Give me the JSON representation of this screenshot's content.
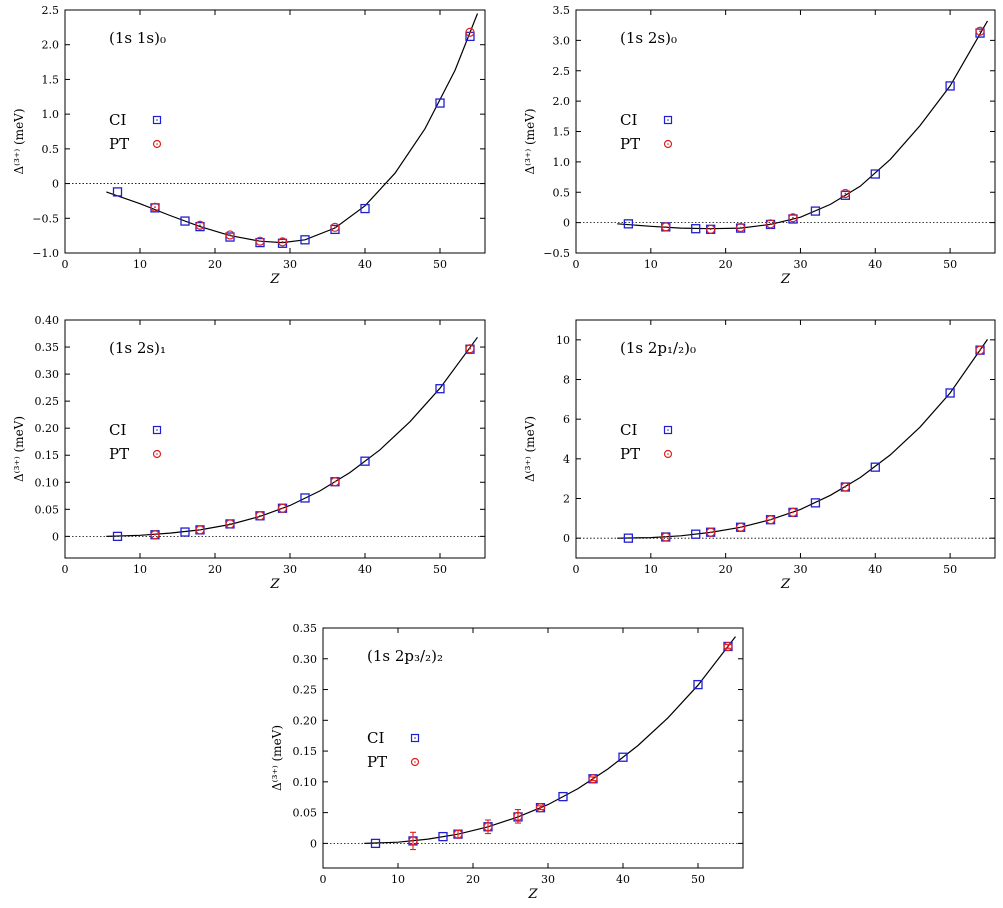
{
  "chart_data": [
    {
      "type": "scatter",
      "title": "(1s 1s)₀",
      "xlabel": "Z",
      "ylabel": "Δ⁽³⁺⁾ (meV)",
      "xlim": [
        0,
        56
      ],
      "ylim": [
        -1.0,
        2.5
      ],
      "xticks": [
        "0",
        "10",
        "20",
        "30",
        "40",
        "50"
      ],
      "yticks": [
        "−1.0",
        "−0.5",
        "0",
        "0.5",
        "1.0",
        "1.5",
        "2.0",
        "2.5"
      ],
      "ytick_values": [
        -1.0,
        -0.5,
        0,
        0.5,
        1.0,
        1.5,
        2.0,
        2.5
      ],
      "zero_line": true,
      "legend_position": "left",
      "series": [
        {
          "name": "CI",
          "marker": "square",
          "color": "#1f1fd6",
          "x": [
            7,
            12,
            16,
            18,
            22,
            26,
            29,
            32,
            36,
            40,
            50,
            54
          ],
          "y": [
            -0.12,
            -0.35,
            -0.54,
            -0.62,
            -0.77,
            -0.85,
            -0.86,
            -0.81,
            -0.66,
            -0.36,
            1.16,
            2.12
          ]
        },
        {
          "name": "PT",
          "marker": "circle",
          "color": "#e02020",
          "x": [
            12,
            18,
            22,
            26,
            29,
            36,
            54
          ],
          "y": [
            -0.34,
            -0.6,
            -0.74,
            -0.83,
            -0.84,
            -0.63,
            2.18
          ]
        }
      ],
      "fit": {
        "x": [
          5.5,
          10,
          14,
          18,
          22,
          26,
          29,
          32,
          36,
          40,
          44,
          48,
          52,
          55
        ],
        "y": [
          -0.12,
          -0.29,
          -0.46,
          -0.62,
          -0.75,
          -0.83,
          -0.85,
          -0.81,
          -0.64,
          -0.32,
          0.15,
          0.79,
          1.63,
          2.45
        ]
      }
    },
    {
      "type": "scatter",
      "title": "(1s 2s)₀",
      "xlabel": "Z",
      "ylabel": "Δ⁽³⁺⁾ (meV)",
      "xlim": [
        0,
        56
      ],
      "ylim": [
        -0.5,
        3.5
      ],
      "xticks": [
        "0",
        "10",
        "20",
        "30",
        "40",
        "50"
      ],
      "yticks": [
        "−0.5",
        "0",
        "0.5",
        "1.0",
        "1.5",
        "2.0",
        "2.5",
        "3.0",
        "3.5"
      ],
      "ytick_values": [
        -0.5,
        0,
        0.5,
        1.0,
        1.5,
        2.0,
        2.5,
        3.0,
        3.5
      ],
      "zero_line": true,
      "legend_position": "left",
      "series": [
        {
          "name": "CI",
          "marker": "square",
          "color": "#1f1fd6",
          "x": [
            7,
            12,
            16,
            18,
            22,
            26,
            29,
            32,
            36,
            40,
            50,
            54
          ],
          "y": [
            -0.02,
            -0.07,
            -0.1,
            -0.11,
            -0.09,
            -0.03,
            0.06,
            0.19,
            0.45,
            0.8,
            2.25,
            3.12
          ]
        },
        {
          "name": "PT",
          "marker": "circle",
          "color": "#e02020",
          "x": [
            12,
            18,
            22,
            26,
            29,
            36,
            54
          ],
          "y": [
            -0.07,
            -0.11,
            -0.08,
            -0.02,
            0.08,
            0.48,
            3.15
          ]
        }
      ],
      "fit": {
        "x": [
          5.5,
          10,
          14,
          18,
          22,
          26,
          30,
          34,
          38,
          42,
          46,
          50,
          55
        ],
        "y": [
          -0.02,
          -0.06,
          -0.09,
          -0.1,
          -0.09,
          -0.03,
          0.09,
          0.3,
          0.6,
          1.04,
          1.6,
          2.25,
          3.32
        ]
      }
    },
    {
      "type": "scatter",
      "title": "(1s 2s)₁",
      "xlabel": "Z",
      "ylabel": "Δ⁽³⁺⁾ (meV)",
      "xlim": [
        0,
        56
      ],
      "ylim": [
        -0.04,
        0.4
      ],
      "xticks": [
        "0",
        "10",
        "20",
        "30",
        "40",
        "50"
      ],
      "yticks": [
        "0",
        "0.05",
        "0.10",
        "0.15",
        "0.20",
        "0.25",
        "0.30",
        "0.35",
        "0.40"
      ],
      "ytick_values": [
        0,
        0.05,
        0.1,
        0.15,
        0.2,
        0.25,
        0.3,
        0.35,
        0.4
      ],
      "zero_line": true,
      "legend_position": "left",
      "series": [
        {
          "name": "CI",
          "marker": "square",
          "color": "#1f1fd6",
          "x": [
            7,
            12,
            16,
            18,
            22,
            26,
            29,
            32,
            36,
            40,
            50,
            54
          ],
          "y": [
            0.0,
            0.003,
            0.008,
            0.012,
            0.023,
            0.038,
            0.052,
            0.071,
            0.101,
            0.139,
            0.273,
            0.346
          ]
        },
        {
          "name": "PT",
          "marker": "circle",
          "color": "#e02020",
          "x": [
            12,
            18,
            22,
            26,
            29,
            36,
            54
          ],
          "y": [
            0.003,
            0.012,
            0.023,
            0.038,
            0.052,
            0.101,
            0.347
          ]
        }
      ],
      "fit": {
        "x": [
          5.5,
          10,
          14,
          18,
          22,
          26,
          30,
          34,
          38,
          42,
          46,
          50,
          55
        ],
        "y": [
          0.0,
          0.002,
          0.006,
          0.012,
          0.022,
          0.037,
          0.057,
          0.084,
          0.118,
          0.16,
          0.212,
          0.274,
          0.368
        ]
      }
    },
    {
      "type": "scatter",
      "title": "(1s 2p₁/₂)₀",
      "xlabel": "Z",
      "ylabel": "Δ⁽³⁺⁾ (meV)",
      "xlim": [
        0,
        56
      ],
      "ylim": [
        -1,
        11
      ],
      "xticks": [
        "0",
        "10",
        "20",
        "30",
        "40",
        "50"
      ],
      "yticks": [
        "0",
        "2",
        "4",
        "6",
        "8",
        "10"
      ],
      "ytick_values": [
        0,
        2,
        4,
        6,
        8,
        10
      ],
      "zero_line": true,
      "legend_position": "left",
      "series": [
        {
          "name": "CI",
          "marker": "square",
          "color": "#1f1fd6",
          "x": [
            7,
            12,
            16,
            18,
            22,
            26,
            29,
            32,
            36,
            40,
            50,
            54
          ],
          "y": [
            0.0,
            0.06,
            0.2,
            0.3,
            0.55,
            0.93,
            1.3,
            1.78,
            2.58,
            3.58,
            7.32,
            9.48
          ]
        },
        {
          "name": "PT",
          "marker": "circle",
          "color": "#e02020",
          "x": [
            12,
            18,
            22,
            26,
            29,
            36,
            54
          ],
          "y": [
            0.06,
            0.3,
            0.55,
            0.93,
            1.3,
            2.58,
            9.48
          ]
        }
      ],
      "fit": {
        "x": [
          5.5,
          10,
          14,
          18,
          22,
          26,
          30,
          34,
          38,
          42,
          46,
          50,
          55
        ],
        "y": [
          0.0,
          0.03,
          0.12,
          0.29,
          0.55,
          0.93,
          1.45,
          2.16,
          3.06,
          4.2,
          5.61,
          7.32,
          10.02
        ]
      }
    },
    {
      "type": "scatter",
      "title": "(1s 2p₃/₂)₂",
      "xlabel": "Z",
      "ylabel": "Δ⁽³⁺⁾ (meV)",
      "xlim": [
        0,
        56
      ],
      "ylim": [
        -0.04,
        0.35
      ],
      "xticks": [
        "0",
        "10",
        "20",
        "30",
        "40",
        "50"
      ],
      "yticks": [
        "0",
        "0.05",
        "0.10",
        "0.15",
        "0.20",
        "0.25",
        "0.30",
        "0.35"
      ],
      "ytick_values": [
        0,
        0.05,
        0.1,
        0.15,
        0.2,
        0.25,
        0.3,
        0.35
      ],
      "zero_line": true,
      "legend_position": "left",
      "series": [
        {
          "name": "CI",
          "marker": "square",
          "color": "#1f1fd6",
          "x": [
            7,
            12,
            16,
            18,
            22,
            26,
            29,
            32,
            36,
            40,
            50,
            54
          ],
          "y": [
            0.0,
            0.004,
            0.011,
            0.015,
            0.027,
            0.043,
            0.058,
            0.076,
            0.105,
            0.14,
            0.258,
            0.32
          ]
        },
        {
          "name": "PT",
          "marker": "circle",
          "color": "#e02020",
          "x": [
            12,
            18,
            22,
            26,
            29,
            36,
            54
          ],
          "y": [
            0.004,
            0.015,
            0.027,
            0.044,
            0.058,
            0.105,
            0.32
          ],
          "yerr": [
            0.014,
            0.006,
            0.011,
            0.011,
            0.003,
            0.003,
            0.003
          ]
        }
      ],
      "fit": {
        "x": [
          5.5,
          10,
          14,
          18,
          22,
          26,
          30,
          34,
          38,
          42,
          46,
          50,
          55
        ],
        "y": [
          0.0,
          0.002,
          0.007,
          0.015,
          0.027,
          0.043,
          0.063,
          0.089,
          0.121,
          0.159,
          0.204,
          0.257,
          0.336
        ]
      }
    }
  ]
}
